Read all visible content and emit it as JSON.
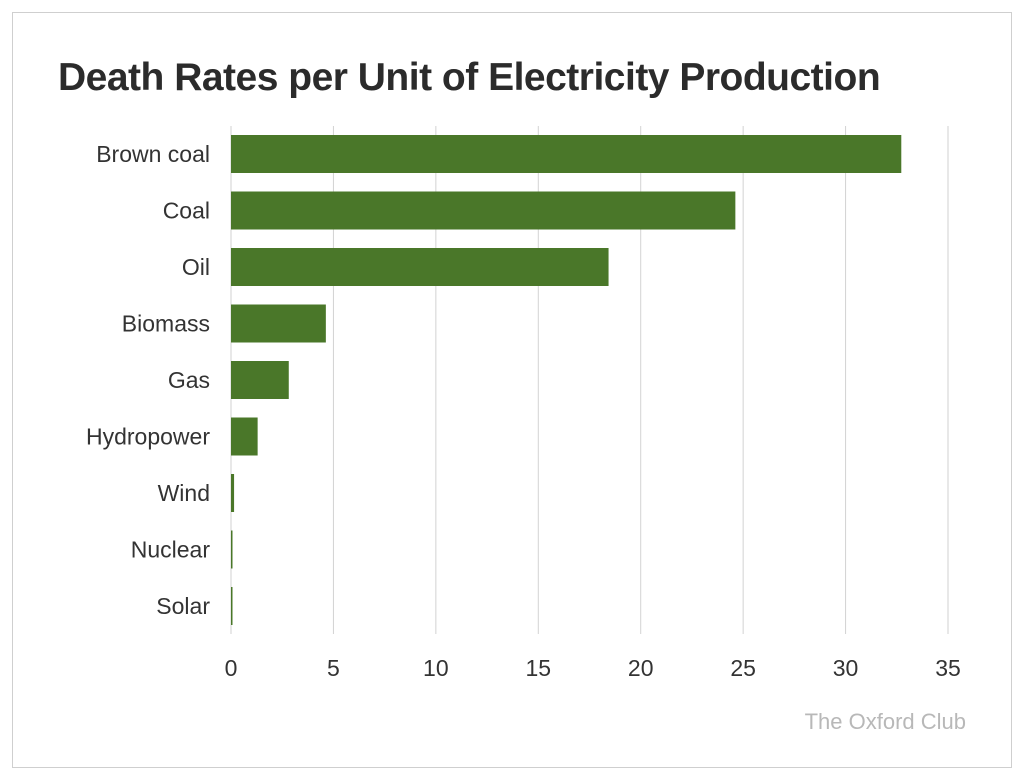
{
  "chart_data": {
    "type": "bar",
    "orientation": "horizontal",
    "title": "Death Rates per Unit of Electricity Production",
    "categories": [
      "Brown coal",
      "Coal",
      "Oil",
      "Biomass",
      "Gas",
      "Hydropower",
      "Wind",
      "Nuclear",
      "Solar"
    ],
    "values": [
      32.72,
      24.62,
      18.43,
      4.63,
      2.82,
      1.3,
      0.15,
      0.07,
      0.02
    ],
    "xlim": [
      0,
      35
    ],
    "xticks": [
      0,
      5,
      10,
      15,
      20,
      25,
      30,
      35
    ],
    "xlabel": "",
    "ylabel": "",
    "grid": "vertical",
    "bar_color": "#4a7729",
    "source": "The Oxford Club"
  }
}
